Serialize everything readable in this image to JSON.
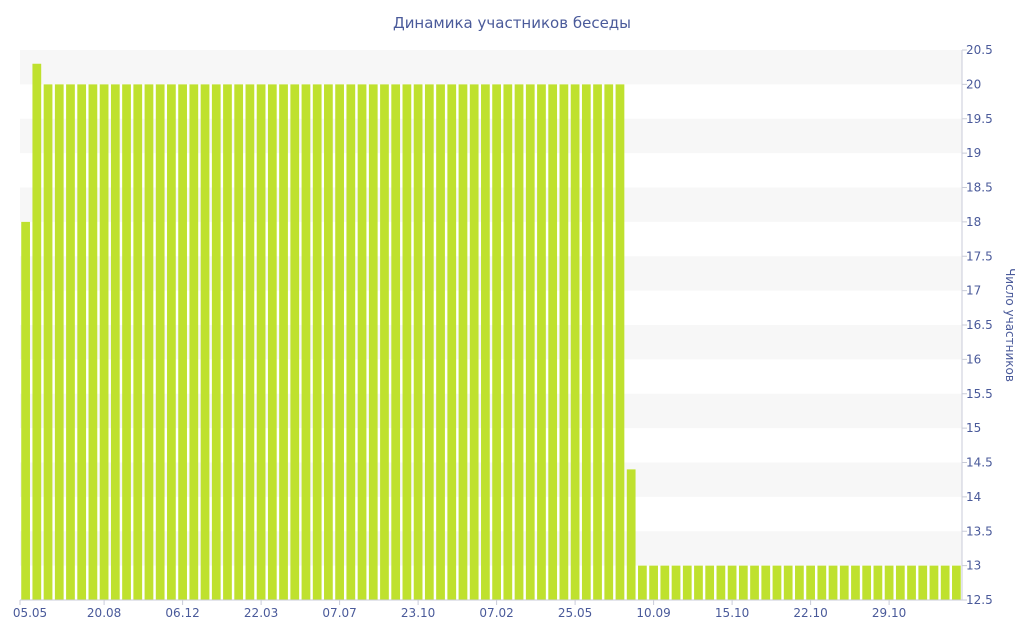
{
  "chart_data": {
    "type": "bar",
    "title": "Динамика участников беседы",
    "xlabel": "",
    "ylabel": "Число участников",
    "ylim": [
      12.5,
      20.5
    ],
    "yticks": [
      12.5,
      13,
      13.5,
      14,
      14.5,
      15,
      15.5,
      16,
      16.5,
      17,
      17.5,
      18,
      18.5,
      19,
      19.5,
      20,
      20.5
    ],
    "y_axis_position": "right",
    "grid": "alternating horizontal bands",
    "legend": "none",
    "bar_color": "#bfe12e",
    "band_color": "#f7f7f7",
    "x_tick_labels": [
      "05.05",
      "20.08",
      "06.12",
      "22.03",
      "07.07",
      "23.10",
      "07.02",
      "25.05",
      "10.09",
      "15.10",
      "22.10",
      "29.10"
    ],
    "values": [
      18,
      20.3,
      20,
      20,
      20,
      20,
      20,
      20,
      20,
      20,
      20,
      20,
      20,
      20,
      20,
      20,
      20,
      20,
      20,
      20,
      20,
      20,
      20,
      20,
      20,
      20,
      20,
      20,
      20,
      20,
      20,
      20,
      20,
      20,
      20,
      20,
      20,
      20,
      20,
      20,
      20,
      20,
      20,
      20,
      20,
      20,
      20,
      20,
      20,
      20,
      20,
      20,
      20,
      20,
      14.4,
      13,
      13,
      13,
      13,
      13,
      13,
      13,
      13,
      13,
      13,
      13,
      13,
      13,
      13,
      13,
      13,
      13,
      13,
      13,
      13,
      13,
      13,
      13,
      13,
      13,
      13,
      13,
      13,
      13
    ]
  }
}
